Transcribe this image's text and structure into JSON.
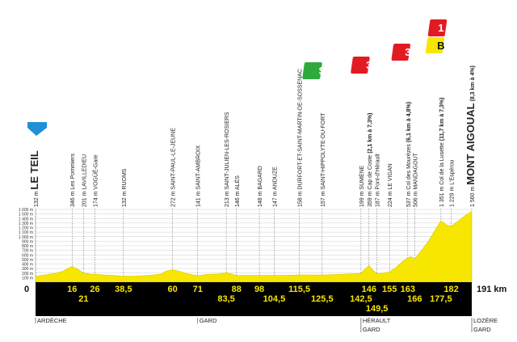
{
  "chart_data": {
    "type": "area",
    "title": "",
    "xlabel": "",
    "ylabel": "",
    "x_unit": "km",
    "y_unit": "m",
    "xlim": [
      0,
      191
    ],
    "ylim": [
      0,
      1600
    ],
    "y_ticks": [
      "100 m",
      "200 m",
      "300 m",
      "400 m",
      "500 m",
      "600 m",
      "700 m",
      "800 m",
      "900 m",
      "1 000 m",
      "1 100 m",
      "1 200 m",
      "1 300 m",
      "1 400 m",
      "1 500 m",
      "1 600 m"
    ],
    "y_tick_values": [
      100,
      200,
      300,
      400,
      500,
      600,
      700,
      800,
      900,
      1000,
      1100,
      1200,
      1300,
      1400,
      1500,
      1600
    ],
    "start_label": "0",
    "end_label": "191 km",
    "profile": [
      {
        "x": 0,
        "y": 132
      },
      {
        "x": 4,
        "y": 160
      },
      {
        "x": 8,
        "y": 190
      },
      {
        "x": 12,
        "y": 240
      },
      {
        "x": 14,
        "y": 300
      },
      {
        "x": 16,
        "y": 346
      },
      {
        "x": 18,
        "y": 300
      },
      {
        "x": 21,
        "y": 201
      },
      {
        "x": 24,
        "y": 180
      },
      {
        "x": 26,
        "y": 174
      },
      {
        "x": 30,
        "y": 160
      },
      {
        "x": 34,
        "y": 150
      },
      {
        "x": 38.5,
        "y": 132
      },
      {
        "x": 44,
        "y": 135
      },
      {
        "x": 50,
        "y": 150
      },
      {
        "x": 55,
        "y": 180
      },
      {
        "x": 57,
        "y": 240
      },
      {
        "x": 60,
        "y": 272
      },
      {
        "x": 63,
        "y": 240
      },
      {
        "x": 67,
        "y": 180
      },
      {
        "x": 71,
        "y": 141
      },
      {
        "x": 75,
        "y": 170
      },
      {
        "x": 80,
        "y": 180
      },
      {
        "x": 83.5,
        "y": 213
      },
      {
        "x": 86,
        "y": 180
      },
      {
        "x": 88,
        "y": 146
      },
      {
        "x": 93,
        "y": 150
      },
      {
        "x": 98,
        "y": 148
      },
      {
        "x": 101,
        "y": 150
      },
      {
        "x": 104.5,
        "y": 147
      },
      {
        "x": 108,
        "y": 150
      },
      {
        "x": 112,
        "y": 155
      },
      {
        "x": 115.5,
        "y": 158
      },
      {
        "x": 120,
        "y": 160
      },
      {
        "x": 125.5,
        "y": 157
      },
      {
        "x": 130,
        "y": 165
      },
      {
        "x": 135,
        "y": 175
      },
      {
        "x": 140,
        "y": 185
      },
      {
        "x": 142.5,
        "y": 199
      },
      {
        "x": 144.5,
        "y": 300
      },
      {
        "x": 146,
        "y": 359
      },
      {
        "x": 148,
        "y": 250
      },
      {
        "x": 149.5,
        "y": 187
      },
      {
        "x": 152,
        "y": 200
      },
      {
        "x": 155,
        "y": 224
      },
      {
        "x": 158,
        "y": 330
      },
      {
        "x": 161,
        "y": 470
      },
      {
        "x": 163,
        "y": 537
      },
      {
        "x": 164.5,
        "y": 560
      },
      {
        "x": 166,
        "y": 506
      },
      {
        "x": 169,
        "y": 700
      },
      {
        "x": 172,
        "y": 900
      },
      {
        "x": 175,
        "y": 1150
      },
      {
        "x": 177.5,
        "y": 1351
      },
      {
        "x": 180,
        "y": 1260
      },
      {
        "x": 182,
        "y": 1229
      },
      {
        "x": 185,
        "y": 1340
      },
      {
        "x": 188,
        "y": 1460
      },
      {
        "x": 191,
        "y": 1560
      }
    ],
    "waypoints": [
      {
        "km": "0",
        "label": "132 m",
        "name": "LE TEIL",
        "main": true,
        "x": 0
      },
      {
        "km": "16",
        "label": "346 m Les Pommiers",
        "x": 16
      },
      {
        "km": "21",
        "label": "201 m LAVILLEDIEU",
        "x": 21
      },
      {
        "km": "26",
        "label": "174 m VOGÜÉ-Gare",
        "x": 26
      },
      {
        "km": "38,5",
        "label": "132 m RUOMS",
        "x": 38.5
      },
      {
        "km": "60",
        "label": "272 m SAINT-PAUL-LE-JEUNE",
        "x": 60
      },
      {
        "km": "71",
        "label": "141 m SAINT-AMBROIX",
        "x": 71
      },
      {
        "km": "83,5",
        "label": "213 m SAINT-JULIEN-LES-ROSIERS",
        "x": 83.5
      },
      {
        "km": "88",
        "label": "146 m ALÈS",
        "x": 88
      },
      {
        "km": "98",
        "label": "148 m BAGARD",
        "x": 98
      },
      {
        "km": "104,5",
        "label": "147 m ANDUZE",
        "x": 104.5
      },
      {
        "km": "115,5",
        "label": "158 m DURFORT-ET-SAINT-MARTIN-DE-SOSSENAC",
        "x": 115.5
      },
      {
        "km": "125,5",
        "label": "157 m SAINT-HIPPOLYTE-DU-FORT",
        "x": 125.5
      },
      {
        "km": "142,5",
        "label": "199 m SUMÈNE",
        "x": 142.5
      },
      {
        "km": "146",
        "label": "359 m Cap de Coste",
        "climb": "(2,1 km à 7,3%)",
        "x": 146
      },
      {
        "km": "149,5",
        "label": "187 m Pont-d'Hérault",
        "x": 149.5
      },
      {
        "km": "155",
        "label": "224 m LE VIGAN",
        "x": 155
      },
      {
        "km": "163",
        "label": "537 m Col des Mourèzes",
        "climb": "(6,1 km à 4,8%)",
        "x": 163
      },
      {
        "km": "166",
        "label": "506 m MANDAGOUT",
        "x": 166
      },
      {
        "km": "177,5",
        "label": "1 351 m Col de la Lusette",
        "climb": "(11,7 km à 7,3%)",
        "x": 177.5
      },
      {
        "km": "182",
        "label": "1 229 m L'Espérou",
        "x": 182
      },
      {
        "km": "191",
        "label": "1 560 m",
        "name": "MONT AIGOUAL",
        "climb": "(8,3 km à 4%)",
        "main": true,
        "x": 191
      }
    ],
    "km_upper": [
      "16",
      "26",
      "38,5",
      "60",
      "71",
      "88",
      "98",
      "115,5",
      "146",
      "155",
      "163",
      "182"
    ],
    "km_lower": [
      "21",
      "83,5",
      "104,5",
      "125,5",
      "142,5",
      "166",
      "177,5"
    ],
    "km_third": [
      "149,5"
    ],
    "markers": [
      {
        "type": "start-flag",
        "x": 0,
        "color": "#1e90d8"
      },
      {
        "type": "sprint",
        "x": 125.5,
        "text": "S",
        "color": "#2eaa3a"
      },
      {
        "type": "climb",
        "x": 146,
        "text": "3",
        "color": "#e21b23"
      },
      {
        "type": "climb",
        "x": 163,
        "text": "3",
        "color": "#e21b23"
      },
      {
        "type": "climb",
        "x": 177.5,
        "text": "1",
        "color": "#e21b23"
      },
      {
        "type": "bonus",
        "x": 177.5,
        "text": "B",
        "color": "#f7e600"
      },
      {
        "type": "finish-flag",
        "x": 191
      }
    ],
    "regions": [
      {
        "name": "ARDÈCHE",
        "x": 0
      },
      {
        "name": "GARD",
        "x": 71
      },
      {
        "name": "HÉRAULT",
        "x": 142.5,
        "sub": "GARD"
      },
      {
        "name": "LOZÈRE",
        "x": 191,
        "sub": "GARD"
      }
    ],
    "colors": {
      "profile": "#f7e600",
      "band": "#000000",
      "km_text": "#f7e600",
      "marker_red": "#e21b23",
      "sprint_green": "#2eaa3a",
      "start_blue": "#1e90d8"
    }
  }
}
